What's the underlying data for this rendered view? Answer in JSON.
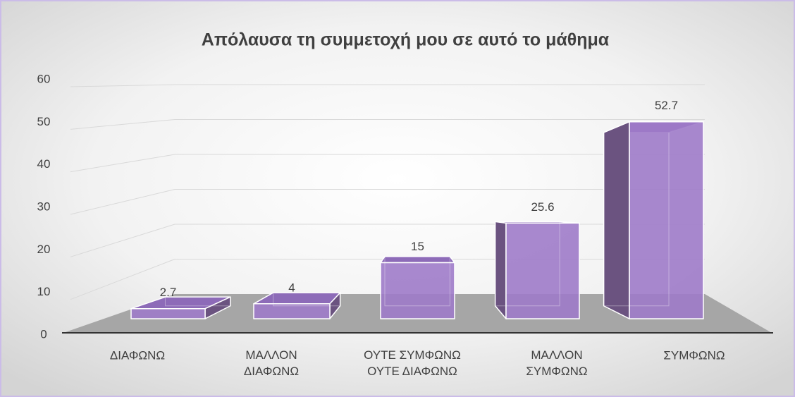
{
  "chart_data": {
    "type": "bar3d",
    "title": "Απόλαυσα τη συμμετοχή μου σε αυτό το μάθημα",
    "categories": [
      "ΔΙΑΦΩΝΩ",
      "ΜΑΛΛΟΝ ΔΙΑΦΩΝΩ",
      "ΟΥΤΕ ΣΥΜΦΩΝΩ ΟΥΤΕ ΔΙΑΦΩΝΩ",
      "ΜΑΛΛΟΝ ΣΥΜΦΩΝΩ",
      "ΣΥΜΦΩΝΩ"
    ],
    "values": [
      2.7,
      4,
      15,
      25.6,
      52.7
    ],
    "color": "#9e7bc9",
    "ylim": [
      0,
      60
    ],
    "yticks": [
      0,
      10,
      20,
      30,
      40,
      50,
      60
    ],
    "grid": true
  }
}
